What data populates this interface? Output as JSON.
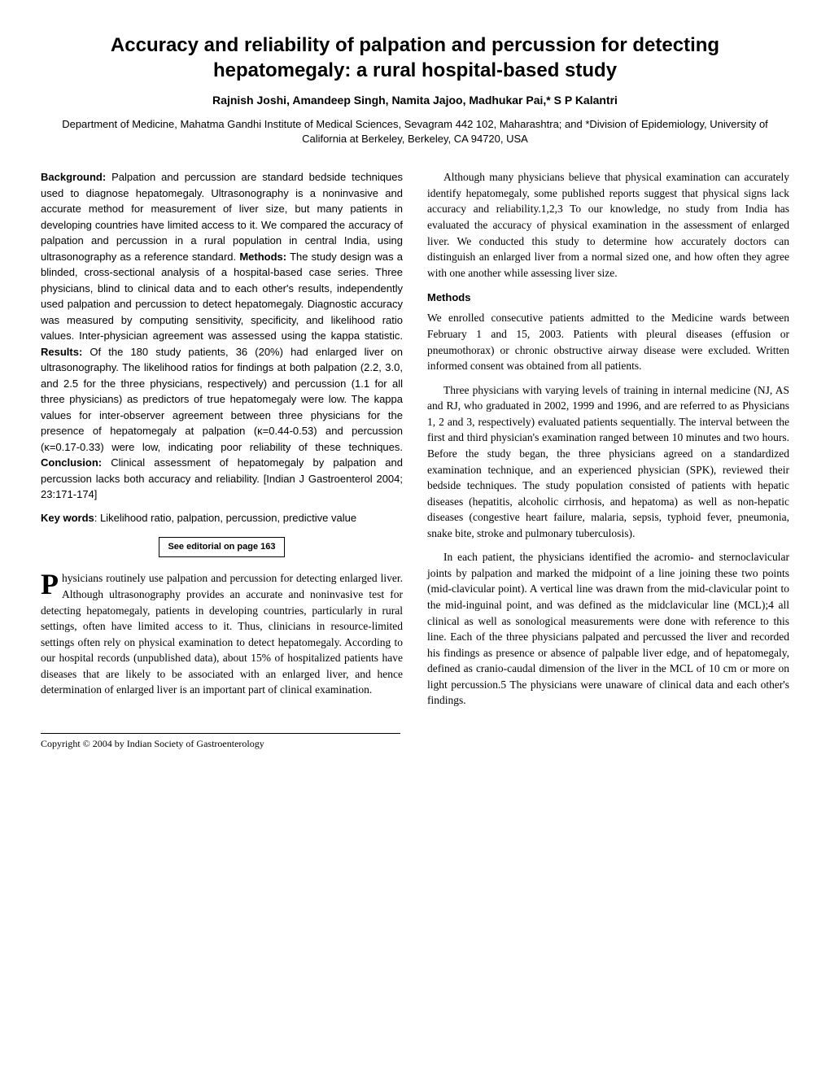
{
  "title": "Accuracy and reliability of palpation and percussion for detecting hepatomegaly: a rural hospital-based study",
  "authors": "Rajnish Joshi, Amandeep Singh, Namita Jajoo, Madhukar Pai,* S P Kalantri",
  "affiliation": "Department of Medicine, Mahatma Gandhi Institute of Medical Sciences, Sevagram 442 102, Maharashtra; and *Division of Epidemiology, University of California at Berkeley, Berkeley, CA 94720, USA",
  "abstract": {
    "background_label": "Background:",
    "background": " Palpation and percussion are standard bedside techniques used to diagnose hepatomegaly. Ultrasonography is a noninvasive and accurate method for measurement of liver size, but many patients in developing countries have limited access to it. We compared the accuracy of palpation and percussion in a rural population in central India, using ultrasonography as a reference standard. ",
    "methods_label": "Methods:",
    "methods": " The study design was a blinded, cross-sectional analysis of a hospital-based case series. Three physicians, blind to clinical data and to each other's results, independently used palpation and percussion to detect hepatomegaly. Diagnostic accuracy was measured by computing sensitivity, specificity, and likelihood ratio values. Inter-physician agreement was assessed using the kappa statistic. ",
    "results_label": "Results:",
    "results": " Of the 180 study patients, 36 (20%) had enlarged liver on ultrasonography. The likelihood ratios for findings at both palpation (2.2, 3.0, and 2.5 for the three physicians, respectively) and percussion (1.1 for all three physicians) as predictors of true hepatomegaly were low. The kappa values for inter-observer agreement between three physicians for the presence of hepatomegaly at palpation (κ=0.44-0.53) and percussion (κ=0.17-0.33) were low, indicating poor reliability of these techniques. ",
    "conclusion_label": "Conclusion:",
    "conclusion": " Clinical assessment of hepatomegaly by palpation and percussion lacks both accuracy and reliability. [Indian J Gastroenterol 2004; 23:171-174]"
  },
  "keywords_label": "Key words",
  "keywords": ": Likelihood ratio, palpation, percussion, predictive value",
  "editorial_note": "See editorial on page 163",
  "intro_p1": "Physicians routinely use palpation and percussion for detecting enlarged liver. Although ultrasonography provides an accurate and noninvasive test for detecting hepatomegaly, patients in developing countries, particularly in rural settings, often have limited access to it. Thus, clinicians in resource-limited settings often rely on physical examination to detect hepatomegaly. According to our hospital records (unpublished data), about 15% of hospitalized patients have diseases that are likely to be associated with an enlarged liver, and hence determination of enlarged liver is an important part of clinical examination.",
  "intro_p2": "Although many physicians believe that physical examination can accurately identify hepatomegaly, some published reports suggest that physical signs lack accuracy and reliability.1,2,3 To our knowledge, no study from India has evaluated the accuracy of physical examination in the assessment of enlarged liver. We conducted this study to determine how accurately doctors can distinguish an enlarged liver from a normal sized one, and how often they agree with one another while assessing liver size.",
  "methods_heading": "Methods",
  "methods_p1": "We enrolled consecutive patients admitted to the Medicine wards between February 1 and 15, 2003. Patients with pleural diseases (effusion or pneumothorax) or chronic obstructive airway disease were excluded. Written informed consent was obtained from all patients.",
  "methods_p2": "Three physicians with varying levels of training in internal medicine (NJ, AS and RJ, who graduated in 2002, 1999 and 1996, and are referred to as Physicians 1, 2 and 3, respectively) evaluated patients sequentially. The interval between the first and third physician's examination ranged between 10 minutes and two hours. Before the study began, the three physicians agreed on a standardized examination technique, and an experienced physician (SPK), reviewed their bedside techniques. The study population consisted of patients with hepatic diseases (hepatitis, alcoholic cirrhosis, and hepatoma) as well as non-hepatic diseases (congestive heart failure, malaria, sepsis, typhoid fever, pneumonia, snake bite, stroke and pulmonary tuberculosis).",
  "methods_p3": "In each patient, the physicians identified the acromio- and sternoclavicular joints by palpation and marked the midpoint of a line joining these two points (mid-clavicular point). A vertical line was drawn from the mid-clavicular point to the mid-inguinal point, and was defined as the midclavicular line (MCL);4 all clinical as well as sonological measurements were done with reference to this line. Each of the three physicians palpated and percussed the liver and recorded his findings as presence or absence of palpable liver edge, and of hepatomegaly, defined as cranio-caudal dimension of the liver in the MCL of 10 cm or more on light percussion.5 The physicians were unaware of clinical data and each other's findings.",
  "copyright": "Copyright © 2004 by Indian Society of Gastroenterology"
}
